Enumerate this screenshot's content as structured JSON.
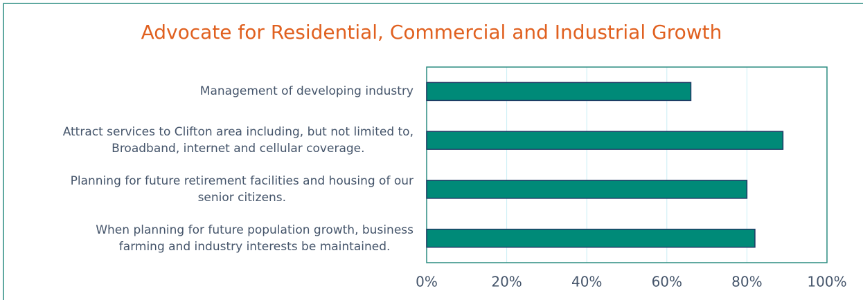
{
  "chart_data": {
    "type": "bar",
    "orientation": "horizontal",
    "title": "Advocate for Residential, Commercial and Industrial Growth",
    "categories": [
      "Management of developing industry",
      "Attract services to Clifton area including, but not limited to,\nBroadband, internet and cellular coverage.",
      "Planning for future retirement facilities and housing of our\nsenior citizens.",
      "When planning for future population growth, business\nfarming and industry interests be maintained."
    ],
    "values": [
      66,
      89,
      80,
      82
    ],
    "color": "#008a78",
    "xlim": [
      0,
      100
    ],
    "xticks": [
      {
        "value": 0,
        "label": "0%"
      },
      {
        "value": 20,
        "label": "20%"
      },
      {
        "value": 40,
        "label": "40%"
      },
      {
        "value": 60,
        "label": "60%"
      },
      {
        "value": 80,
        "label": "80%"
      },
      {
        "value": 100,
        "label": "100%"
      }
    ],
    "grid": true
  }
}
